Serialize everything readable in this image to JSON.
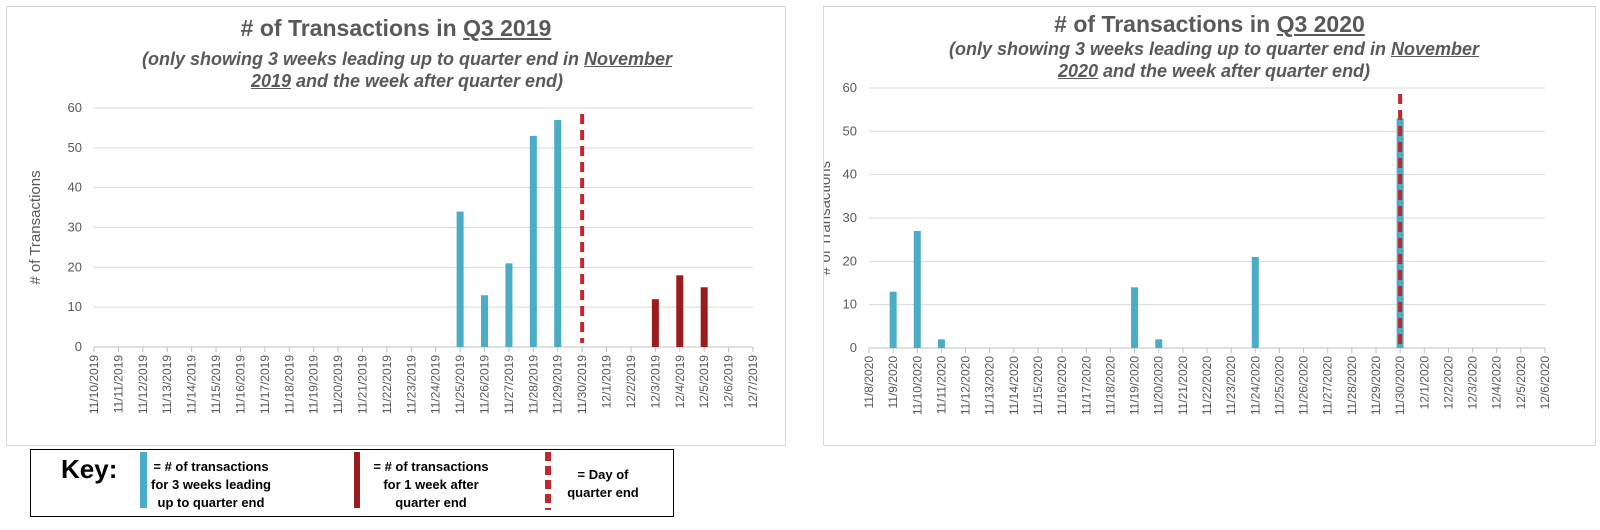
{
  "chart_data": [
    {
      "type": "bar",
      "title_prefix": "# of Transactions in ",
      "title_highlight": "Q3 2019",
      "subtitle_line1_prefix": "(only showing 3 weeks leading up to quarter end in ",
      "subtitle_line1_highlight": "November",
      "subtitle_line2_highlight": "2019",
      "subtitle_line2_suffix": " and the week after quarter end)",
      "ylabel": "# of Transactions",
      "xlabel": "",
      "ylim": [
        0,
        60
      ],
      "yticks": [
        "0",
        "10",
        "20",
        "30",
        "40",
        "50",
        "60"
      ],
      "grid": true,
      "categories": [
        "11/10/2019",
        "11/11/2019",
        "11/12/2019",
        "11/13/2019",
        "11/14/2019",
        "11/15/2019",
        "11/16/2019",
        "11/17/2019",
        "11/18/2019",
        "11/19/2019",
        "11/20/2019",
        "11/21/2019",
        "11/22/2019",
        "11/23/2019",
        "11/24/2019",
        "11/25/2019",
        "11/26/2019",
        "11/27/2019",
        "11/28/2019",
        "11/29/2019",
        "11/30/2019",
        "12/1/2019",
        "12/2/2019",
        "12/3/2019",
        "12/4/2019",
        "12/5/2019",
        "12/6/2019",
        "12/7/2019"
      ],
      "values": [
        0,
        0,
        0,
        0,
        0,
        0,
        0,
        0,
        0,
        0,
        0,
        0,
        0,
        0,
        0,
        34,
        13,
        21,
        53,
        57,
        0,
        0,
        0,
        12,
        18,
        15,
        0,
        0
      ],
      "bar_colors": [
        "#4bacc6",
        "#4bacc6",
        "#4bacc6",
        "#4bacc6",
        "#4bacc6",
        "#4bacc6",
        "#4bacc6",
        "#4bacc6",
        "#4bacc6",
        "#4bacc6",
        "#4bacc6",
        "#4bacc6",
        "#4bacc6",
        "#4bacc6",
        "#4bacc6",
        "#4bacc6",
        "#4bacc6",
        "#4bacc6",
        "#4bacc6",
        "#4bacc6",
        "#4bacc6",
        "#9b1c1f",
        "#9b1c1f",
        "#9b1c1f",
        "#9b1c1f",
        "#9b1c1f",
        "#9b1c1f",
        "#9b1c1f"
      ],
      "quarter_end": "11/30/2019"
    },
    {
      "type": "bar",
      "title_prefix": "# of Transactions in ",
      "title_highlight": "Q3 2020",
      "subtitle_line1_prefix": "(only showing 3 weeks leading up to quarter end in ",
      "subtitle_line1_highlight": "November",
      "subtitle_line2_highlight": "2020",
      "subtitle_line2_suffix": " and the week after quarter end)",
      "ylabel": "# of Transactions",
      "xlabel": "",
      "ylim": [
        0,
        60
      ],
      "yticks": [
        "0",
        "10",
        "20",
        "30",
        "40",
        "50",
        "60"
      ],
      "grid": true,
      "categories": [
        "11/8/2020",
        "11/9/2020",
        "11/10/2020",
        "11/11/2020",
        "11/12/2020",
        "11/13/2020",
        "11/14/2020",
        "11/15/2020",
        "11/16/2020",
        "11/17/2020",
        "11/18/2020",
        "11/19/2020",
        "11/20/2020",
        "11/21/2020",
        "11/22/2020",
        "11/23/2020",
        "11/24/2020",
        "11/25/2020",
        "11/26/2020",
        "11/27/2020",
        "11/28/2020",
        "11/29/2020",
        "11/30/2020",
        "12/1/2020",
        "12/2/2020",
        "12/3/2020",
        "12/4/2020",
        "12/5/2020",
        "12/6/2020"
      ],
      "values": [
        0,
        13,
        27,
        2,
        0,
        0,
        0,
        0,
        0,
        0,
        0,
        14,
        2,
        0,
        0,
        0,
        21,
        0,
        0,
        0,
        0,
        0,
        53,
        0,
        0,
        0,
        0,
        0,
        0
      ],
      "bar_colors": [
        "#4bacc6",
        "#4bacc6",
        "#4bacc6",
        "#4bacc6",
        "#4bacc6",
        "#4bacc6",
        "#4bacc6",
        "#4bacc6",
        "#4bacc6",
        "#4bacc6",
        "#4bacc6",
        "#4bacc6",
        "#4bacc6",
        "#4bacc6",
        "#4bacc6",
        "#4bacc6",
        "#4bacc6",
        "#4bacc6",
        "#4bacc6",
        "#4bacc6",
        "#4bacc6",
        "#4bacc6",
        "#4bacc6",
        "#9b1c1f",
        "#9b1c1f",
        "#9b1c1f",
        "#9b1c1f",
        "#9b1c1f",
        "#9b1c1f"
      ],
      "quarter_end": "11/30/2020"
    }
  ],
  "key": {
    "title": "Key:",
    "item1_lines": [
      "= # of transactions",
      "for 3 weeks leading",
      "up to quarter end"
    ],
    "item2_lines": [
      "= # of transactions",
      "for 1 week after",
      "quarter end"
    ],
    "item3_lines": [
      "=  Day of",
      "quarter end"
    ],
    "color_before": "#4bacc6",
    "color_after": "#9b1c1f",
    "color_marker": "#c0282d"
  }
}
